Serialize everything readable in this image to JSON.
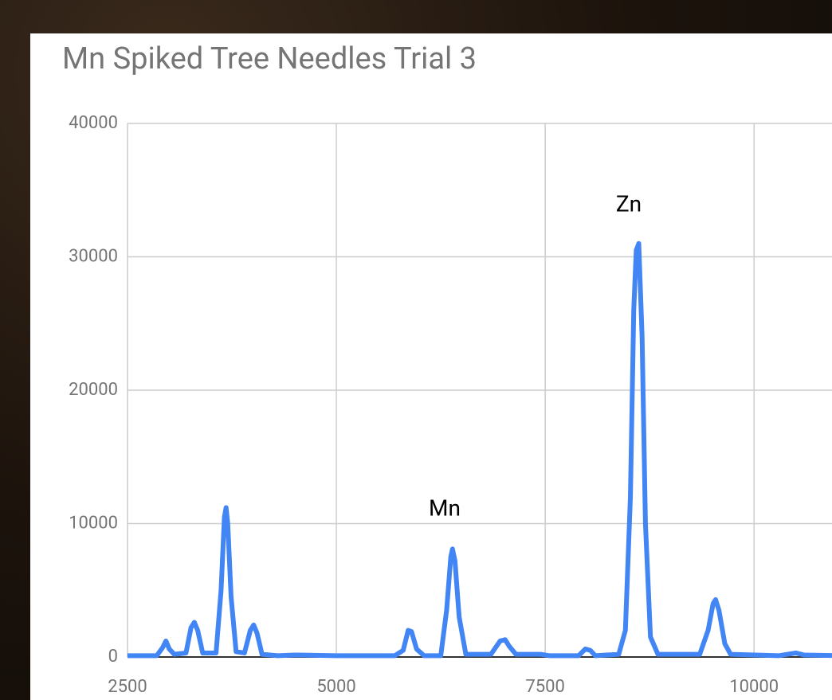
{
  "chart_data": {
    "type": "line",
    "title": "Mn Spiked Tree Needles Trial 3",
    "annotations": [
      "Zn",
      "Mn"
    ],
    "x": [
      2500,
      2850,
      2920,
      2960,
      3000,
      3060,
      3200,
      3260,
      3300,
      3340,
      3400,
      3560,
      3620,
      3660,
      3680,
      3700,
      3740,
      3800,
      3900,
      3970,
      4010,
      4050,
      4110,
      4300,
      4500,
      5000,
      5700,
      5800,
      5860,
      5900,
      5960,
      6050,
      6250,
      6320,
      6370,
      6390,
      6420,
      6470,
      6550,
      6850,
      6960,
      7020,
      7070,
      7150,
      7450,
      7550,
      7900,
      7980,
      8040,
      8100,
      8380,
      8460,
      8520,
      8560,
      8590,
      8620,
      8660,
      8700,
      8760,
      8850,
      9350,
      9450,
      9510,
      9540,
      9580,
      9650,
      9720,
      10300,
      10500,
      10600,
      11000
    ],
    "series": [
      {
        "color": "#4285f4",
        "values": [
          100,
          100,
          700,
          1200,
          600,
          200,
          300,
          2200,
          2600,
          2000,
          300,
          300,
          5000,
          10500,
          11200,
          10000,
          4500,
          400,
          300,
          2000,
          2400,
          1800,
          200,
          100,
          150,
          100,
          100,
          500,
          2000,
          1900,
          600,
          100,
          100,
          3500,
          7500,
          8100,
          7200,
          3000,
          200,
          200,
          1200,
          1300,
          800,
          200,
          200,
          100,
          100,
          600,
          500,
          100,
          200,
          2000,
          12000,
          26000,
          30500,
          31000,
          24000,
          10000,
          1500,
          200,
          200,
          2000,
          4000,
          4300,
          3500,
          1000,
          200,
          100,
          300,
          150,
          100
        ]
      }
    ],
    "xlim": [
      2500,
      11000
    ],
    "ylim": [
      0,
      40000
    ],
    "xticks": [
      2500,
      5000,
      7500,
      10000
    ],
    "yticks": [
      0,
      10000,
      20000,
      30000,
      40000
    ],
    "grid": true
  }
}
